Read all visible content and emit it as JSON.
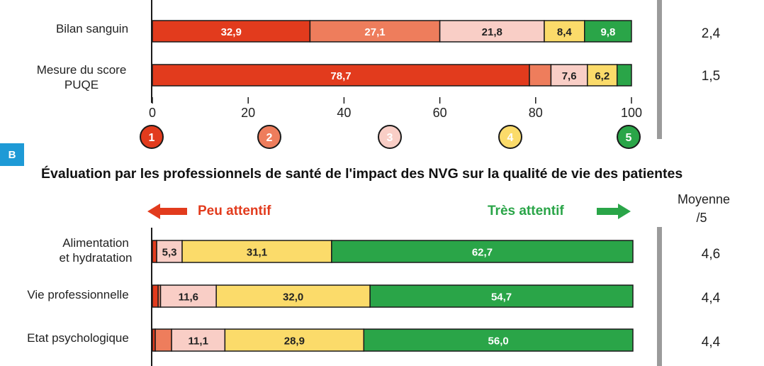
{
  "panel_b": {
    "badge": "B",
    "title": "Évaluation par les professionnels de santé de l'impact des NVG sur la qualité de vie des patientes",
    "avg_header_line1": "Moyenne",
    "avg_header_line2": "/5",
    "left_direction": "Peu attentif",
    "right_direction": "Très attentif"
  },
  "colors": {
    "scale_1": "#e23b1d",
    "scale_2": "#ee7d5c",
    "scale_3": "#f9cec6",
    "scale_4": "#fbdb6a",
    "scale_5": "#2aa548",
    "arrow_left": "#e23b1d",
    "arrow_right": "#2aa548",
    "divider": "#9b9b9b"
  },
  "chart_data": [
    {
      "type": "bar",
      "orientation": "horizontal",
      "stacked": true,
      "categories": [
        "Bilan sanguin",
        "Mesure du score PUQE"
      ],
      "category_lines": [
        [
          "Bilan sanguin"
        ],
        [
          "Mesure du score",
          "PUQE"
        ]
      ],
      "series": [
        {
          "name": "1",
          "values": [
            32.9,
            78.7
          ]
        },
        {
          "name": "2",
          "values": [
            27.1,
            4.5
          ]
        },
        {
          "name": "3",
          "values": [
            21.8,
            7.6
          ]
        },
        {
          "name": "4",
          "values": [
            8.4,
            6.2
          ]
        },
        {
          "name": "5",
          "values": [
            9.8,
            3.0
          ]
        }
      ],
      "averages": [
        "2,4",
        "1,5"
      ],
      "xlim": [
        0,
        100
      ],
      "xticks": [
        "0",
        "20",
        "40",
        "60",
        "80",
        "100"
      ],
      "legend": [
        "1",
        "2",
        "3",
        "4",
        "5"
      ],
      "legend_placement": "bottom"
    },
    {
      "type": "bar",
      "orientation": "horizontal",
      "stacked": true,
      "categories": [
        "Alimentation et hydratation",
        "Vie professionnelle",
        "Etat psychologique"
      ],
      "category_lines": [
        [
          "Alimentation",
          "et hydratation"
        ],
        [
          "Vie professionnelle"
        ],
        [
          "Etat psychologique"
        ]
      ],
      "series": [
        {
          "name": "1",
          "values": [
            0.9,
            1.2,
            0.6
          ]
        },
        {
          "name": "2",
          "values": [
            0.0,
            0.5,
            3.4
          ]
        },
        {
          "name": "3",
          "values": [
            5.3,
            11.6,
            11.1
          ]
        },
        {
          "name": "4",
          "values": [
            31.1,
            32.0,
            28.9
          ]
        },
        {
          "name": "5",
          "values": [
            62.7,
            54.7,
            56.0
          ]
        }
      ],
      "averages": [
        "4,6",
        "4,4",
        "4,4"
      ],
      "xlim": [
        0,
        100
      ]
    }
  ]
}
